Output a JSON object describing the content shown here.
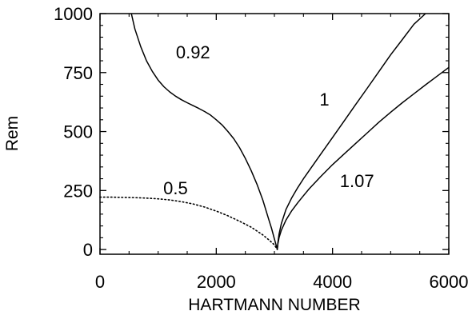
{
  "chart_data": {
    "type": "line",
    "title": "",
    "xlabel": "HARTMANN NUMBER",
    "ylabel": "Rem",
    "xlim": [
      0,
      6000
    ],
    "ylim": [
      -20,
      1000
    ],
    "x_ticks": [
      0,
      2000,
      4000,
      6000
    ],
    "x_tick_labels": [
      "0",
      "2000",
      "4000",
      "6000"
    ],
    "y_ticks": [
      0,
      250,
      500,
      750,
      1000
    ],
    "y_tick_labels": [
      "0",
      "250",
      "500",
      "750",
      "1000"
    ],
    "grid": false,
    "legend": "none",
    "series": [
      {
        "name": "0.92",
        "style": "solid",
        "label_x": 1600,
        "label_y": 810,
        "x": [
          540,
          600,
          700,
          800,
          900,
          1000,
          1100,
          1200,
          1300,
          1400,
          1500,
          1600,
          1700,
          1800,
          1900,
          2000,
          2100,
          2200,
          2300,
          2400,
          2500,
          2600,
          2700,
          2800,
          2900,
          2950,
          3000,
          3030,
          3050
        ],
        "y": [
          1000,
          935,
          860,
          800,
          755,
          718,
          690,
          668,
          650,
          635,
          622,
          610,
          598,
          585,
          570,
          550,
          528,
          500,
          470,
          432,
          386,
          335,
          277,
          210,
          130,
          90,
          45,
          18,
          0
        ]
      },
      {
        "name": "1",
        "style": "solid",
        "label_x": 3860,
        "label_y": 610,
        "x": [
          3050,
          3060,
          3080,
          3120,
          3200,
          3300,
          3400,
          3500,
          3600,
          3800,
          4000,
          4200,
          4400,
          4600,
          4800,
          5000,
          5200,
          5400,
          5600
        ],
        "y": [
          0,
          30,
          65,
          110,
          170,
          220,
          262,
          300,
          335,
          405,
          475,
          545,
          615,
          685,
          755,
          825,
          890,
          955,
          1020
        ]
      },
      {
        "name": "1.07",
        "style": "solid",
        "label_x": 4420,
        "label_y": 265,
        "x": [
          3050,
          3060,
          3080,
          3120,
          3200,
          3300,
          3400,
          3500,
          3600,
          3800,
          4000,
          4200,
          4400,
          4600,
          4800,
          5000,
          5200,
          5400,
          5600,
          5800,
          6000
        ],
        "y": [
          0,
          25,
          50,
          82,
          125,
          165,
          198,
          228,
          258,
          310,
          360,
          405,
          450,
          495,
          540,
          582,
          622,
          660,
          698,
          735,
          772
        ]
      },
      {
        "name": "0.5",
        "style": "dotted",
        "label_x": 1300,
        "label_y": 235,
        "x": [
          0,
          200,
          400,
          600,
          800,
          1000,
          1200,
          1400,
          1600,
          1800,
          2000,
          2200,
          2400,
          2600,
          2800,
          2900,
          3000,
          3050
        ],
        "y": [
          222,
          222,
          221,
          220,
          218,
          215,
          210,
          203,
          193,
          180,
          163,
          143,
          120,
          95,
          62,
          42,
          20,
          0
        ]
      }
    ]
  }
}
